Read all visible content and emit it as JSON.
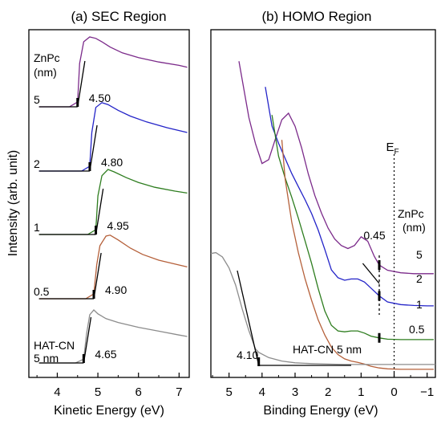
{
  "chart_data": [
    {
      "type": "line",
      "title": "(a) SEC Region",
      "xlabel": "Kinetic Energy (eV)",
      "ylabel": "Intensity (arb. unit)",
      "xlim": [
        3.3,
        7.25
      ],
      "xticks": [
        4,
        5,
        6,
        7
      ],
      "legend_header": "ZnPc\n(nm)",
      "series": [
        {
          "name": "5",
          "color": "#7b2a8a",
          "cutoff": 4.5,
          "cutoff_label": "4.50",
          "x": [
            3.55,
            4.3,
            4.5,
            4.55,
            4.65,
            4.8,
            4.95,
            5.1,
            5.3,
            5.6,
            6.0,
            6.5,
            7.0,
            7.2
          ],
          "y": [
            0,
            0,
            0.1,
            0.9,
            1.35,
            1.45,
            1.42,
            1.35,
            1.24,
            1.12,
            1.02,
            0.93,
            0.86,
            0.82
          ]
        },
        {
          "name": "2",
          "color": "#2323c8",
          "cutoff": 4.8,
          "cutoff_label": "4.80",
          "x": [
            3.55,
            4.6,
            4.8,
            4.85,
            4.95,
            5.1,
            5.25,
            5.5,
            5.8,
            6.2,
            6.7,
            7.2
          ],
          "y": [
            0,
            0,
            0.1,
            0.8,
            1.32,
            1.42,
            1.38,
            1.26,
            1.14,
            1.02,
            0.9,
            0.8
          ]
        },
        {
          "name": "1",
          "color": "#2e7d1f",
          "cutoff": 4.95,
          "cutoff_label": "4.95",
          "x": [
            3.55,
            4.75,
            4.95,
            5.0,
            5.1,
            5.25,
            5.4,
            5.7,
            6.0,
            6.4,
            6.9,
            7.2
          ],
          "y": [
            0,
            0,
            0.1,
            0.8,
            1.22,
            1.35,
            1.3,
            1.18,
            1.08,
            0.98,
            0.9,
            0.86
          ]
        },
        {
          "name": "0.5",
          "color": "#b5603a",
          "cutoff": 4.9,
          "cutoff_label": "4.90",
          "x": [
            3.55,
            4.7,
            4.9,
            4.97,
            5.05,
            5.2,
            5.3,
            5.5,
            5.8,
            6.1,
            6.5,
            7.0,
            7.2
          ],
          "y": [
            0,
            0,
            0.1,
            0.7,
            1.1,
            1.3,
            1.32,
            1.22,
            1.05,
            0.92,
            0.8,
            0.7,
            0.66
          ]
        },
        {
          "name": "HAT-CN\n5 nm",
          "color": "#8c8c8c",
          "cutoff": 4.65,
          "cutoff_label": "4.65",
          "x": [
            3.55,
            4.45,
            4.65,
            4.72,
            4.8,
            4.9,
            5.0,
            5.2,
            5.5,
            6.0,
            6.5,
            7.0,
            7.2
          ],
          "y": [
            0,
            0,
            0.08,
            0.6,
            1.0,
            1.1,
            1.02,
            0.92,
            0.84,
            0.74,
            0.66,
            0.58,
            0.55
          ]
        }
      ]
    },
    {
      "type": "line",
      "title": "(b) HOMO Region",
      "xlabel": "Binding Energy (eV)",
      "xlim": [
        5.55,
        -1.25
      ],
      "xticks": [
        5,
        4,
        3,
        2,
        1,
        0,
        -1
      ],
      "xtick_labels": [
        "5",
        "4",
        "3",
        "2",
        "1",
        "0",
        "−1"
      ],
      "fermi_label": "E",
      "fermi_subscript": "F",
      "legend_header": "ZnPc\n(nm)",
      "annotations": [
        {
          "text": "0.45",
          "x": 0.45
        },
        {
          "text": "4.10",
          "x": 4.1
        },
        {
          "text": "HAT-CN 5 nm"
        }
      ],
      "series": [
        {
          "name": "5",
          "color": "#7b2a8a",
          "x": [
            4.7,
            4.4,
            4.2,
            4.0,
            3.8,
            3.6,
            3.4,
            3.2,
            3.0,
            2.8,
            2.6,
            2.4,
            2.2,
            2.0,
            1.8,
            1.6,
            1.4,
            1.2,
            1.0,
            0.8,
            0.6,
            0.45,
            0.2,
            -0.2,
            -0.6,
            -1.0,
            -1.2
          ],
          "y": [
            5.2,
            3.9,
            3.3,
            2.84,
            2.93,
            3.4,
            3.85,
            4.0,
            3.7,
            3.2,
            2.6,
            2.1,
            1.7,
            1.35,
            1.1,
            0.95,
            0.88,
            0.95,
            1.15,
            1.05,
            0.7,
            0.5,
            0.38,
            0.32,
            0.3,
            0.3,
            0.3
          ]
        },
        {
          "name": "2",
          "color": "#2323c8",
          "x": [
            3.9,
            3.7,
            3.5,
            3.3,
            3.1,
            2.9,
            2.7,
            2.5,
            2.3,
            2.1,
            1.9,
            1.7,
            1.5,
            1.3,
            1.1,
            0.9,
            0.7,
            0.45,
            0.2,
            -0.2,
            -0.6,
            -1.0,
            -1.2
          ],
          "y": [
            5.2,
            4.3,
            3.9,
            3.55,
            3.2,
            2.9,
            2.6,
            2.28,
            1.9,
            1.45,
            0.98,
            0.8,
            0.74,
            0.77,
            0.77,
            0.7,
            0.56,
            0.38,
            0.24,
            0.18,
            0.16,
            0.15,
            0.15
          ]
        },
        {
          "name": "1",
          "color": "#2e7d1f",
          "x": [
            3.7,
            3.5,
            3.3,
            3.1,
            2.9,
            2.7,
            2.5,
            2.3,
            2.1,
            1.9,
            1.7,
            1.5,
            1.3,
            1.1,
            0.9,
            0.7,
            0.45,
            0.2,
            -0.2,
            -0.6,
            -1.0,
            -1.2
          ],
          "y": [
            5.2,
            4.25,
            3.75,
            3.3,
            2.82,
            2.3,
            1.78,
            1.2,
            0.68,
            0.35,
            0.22,
            0.2,
            0.22,
            0.22,
            0.17,
            0.1,
            0.06,
            0.03,
            0.02,
            0.02,
            0.02,
            0.02
          ]
        },
        {
          "name": "0.5",
          "color": "#b5603a",
          "x": [
            3.4,
            3.3,
            3.1,
            2.9,
            2.7,
            2.5,
            2.3,
            2.1,
            1.9,
            1.7,
            1.5,
            1.3,
            1.1,
            0.9,
            0.7,
            0.45,
            0.2,
            -0.2,
            -0.6,
            -1.0,
            -1.2
          ],
          "y": [
            5.2,
            4.3,
            3.3,
            2.6,
            2.0,
            1.5,
            1.05,
            0.7,
            0.42,
            0.25,
            0.15,
            0.1,
            0.07,
            0.03,
            -0.02,
            -0.06,
            -0.08,
            -0.09,
            -0.09,
            -0.09,
            -0.09
          ]
        },
        {
          "name": "HAT-CN 5 nm",
          "color": "#8c8c8c",
          "x": [
            5.55,
            5.4,
            5.2,
            5.0,
            4.8,
            4.6,
            4.4,
            4.2,
            4.1,
            3.8,
            3.4,
            3.0,
            2.5,
            2.0,
            1.5,
            1.0,
            0.5,
            0.0,
            -0.5,
            -1.0,
            -1.25
          ],
          "y": [
            2.58,
            2.6,
            2.5,
            2.25,
            1.85,
            1.3,
            0.8,
            0.38,
            0.3,
            0.18,
            0.1,
            0.06,
            0.04,
            0.03,
            0.02,
            0.02,
            0.02,
            0.02,
            0.02,
            0.02,
            0.02
          ]
        }
      ]
    }
  ]
}
